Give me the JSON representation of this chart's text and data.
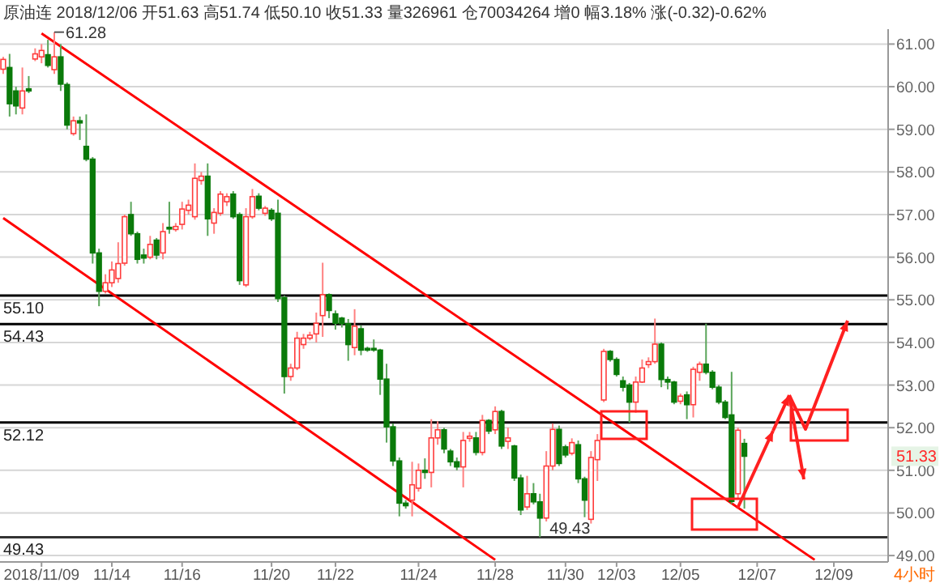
{
  "chart_data": {
    "type": "candlestick",
    "title": "原油连 2018/12/06 开51.63 高51.74 低50.10 收51.33 量326961 仓70034264 增0 幅3.18% 涨(-0.32)-0.62%",
    "categories": [
      null,
      null,
      null,
      null,
      null,
      null,
      "2018/11/09",
      null,
      null,
      null,
      null,
      null,
      null,
      null,
      null,
      null,
      null,
      "11/14",
      null,
      null,
      null,
      null,
      null,
      null,
      null,
      null,
      null,
      null,
      "11/16",
      null,
      null,
      null,
      null,
      null,
      null,
      null,
      null,
      null,
      null,
      null,
      null,
      null,
      "11/20",
      null,
      null,
      null,
      null,
      null,
      null,
      null,
      null,
      null,
      "11/22",
      null,
      null,
      null,
      null,
      null,
      null,
      null,
      null,
      null,
      null,
      null,
      null,
      "11/24",
      null,
      null,
      null,
      null,
      null,
      null,
      null,
      null,
      null,
      null,
      null,
      "11/28",
      null,
      null,
      null,
      null,
      null,
      null,
      null,
      null,
      null,
      null,
      "11/30",
      null,
      null,
      null,
      null,
      null,
      null,
      null,
      "12/03",
      null,
      null,
      null,
      null,
      null,
      null,
      null,
      null,
      null,
      "12/05",
      null,
      null,
      null,
      null,
      null,
      null,
      null,
      null,
      null,
      null,
      null,
      "12/07",
      null,
      null,
      null,
      null,
      null,
      null,
      null,
      null,
      null,
      null,
      null,
      "12/09",
      null,
      null,
      null,
      null,
      null,
      null,
      null,
      null
    ],
    "ohlc": [
      [
        60.41,
        60.7,
        60.3,
        60.64
      ],
      [
        60.45,
        60.77,
        59.3,
        59.6
      ],
      [
        59.9,
        60.0,
        59.35,
        59.55
      ],
      [
        59.5,
        60.45,
        59.35,
        59.9
      ],
      [
        59.95,
        60.25,
        59.85,
        59.9
      ],
      [
        60.65,
        60.9,
        60.6,
        60.77
      ],
      [
        60.7,
        61.0,
        60.55,
        60.85
      ],
      [
        60.75,
        61.1,
        60.45,
        60.5
      ],
      [
        60.4,
        61.28,
        60.3,
        60.7
      ],
      [
        60.7,
        61.0,
        59.9,
        60.06
      ],
      [
        60.05,
        60.1,
        59.0,
        59.1
      ],
      [
        58.9,
        59.3,
        58.85,
        59.2
      ],
      [
        59.2,
        59.3,
        58.75,
        59.15
      ],
      [
        58.6,
        59.35,
        58.25,
        58.3
      ],
      [
        58.3,
        58.35,
        55.85,
        56.1
      ],
      [
        56.1,
        56.2,
        54.85,
        55.2
      ],
      [
        55.2,
        55.6,
        55.15,
        55.4
      ],
      [
        55.4,
        55.9,
        55.3,
        55.7
      ],
      [
        55.5,
        56.35,
        55.4,
        55.85
      ],
      [
        55.86,
        57.0,
        55.8,
        56.95
      ],
      [
        57.0,
        57.3,
        56.5,
        56.55
      ],
      [
        56.55,
        56.6,
        55.85,
        55.95
      ],
      [
        56.05,
        56.2,
        55.85,
        55.98
      ],
      [
        56.0,
        56.5,
        55.95,
        56.3
      ],
      [
        56.4,
        56.45,
        55.95,
        56.05
      ],
      [
        56.1,
        56.8,
        55.95,
        56.6
      ],
      [
        56.7,
        57.3,
        56.55,
        56.67
      ],
      [
        56.65,
        56.8,
        56.6,
        56.72
      ],
      [
        56.77,
        57.3,
        56.65,
        57.13
      ],
      [
        57.1,
        57.35,
        57.0,
        57.22
      ],
      [
        56.95,
        58.2,
        56.88,
        57.85
      ],
      [
        57.8,
        58.0,
        57.7,
        57.9
      ],
      [
        57.9,
        58.2,
        56.5,
        56.9
      ],
      [
        56.8,
        57.15,
        56.55,
        57.05
      ],
      [
        57.03,
        57.55,
        56.97,
        57.48
      ],
      [
        57.3,
        57.5,
        57.2,
        57.42
      ],
      [
        57.48,
        57.55,
        56.9,
        56.95
      ],
      [
        57.0,
        57.05,
        55.35,
        55.45
      ],
      [
        55.35,
        57.15,
        55.3,
        56.95
      ],
      [
        56.95,
        57.6,
        56.9,
        57.42
      ],
      [
        57.43,
        57.5,
        57.1,
        57.15
      ],
      [
        57.03,
        57.2,
        56.97,
        57.15
      ],
      [
        57.1,
        57.15,
        56.85,
        56.9
      ],
      [
        57.03,
        57.35,
        54.95,
        55.03
      ],
      [
        55.05,
        55.1,
        52.8,
        53.2
      ],
      [
        53.2,
        53.5,
        53.1,
        53.4
      ],
      [
        53.4,
        54.25,
        53.35,
        54.1
      ],
      [
        53.95,
        54.2,
        53.85,
        54.1
      ],
      [
        54.1,
        54.25,
        54.05,
        54.17
      ],
      [
        54.2,
        54.7,
        54.0,
        54.45
      ],
      [
        54.63,
        55.87,
        54.13,
        55.12
      ],
      [
        55.12,
        55.15,
        54.57,
        54.75
      ],
      [
        54.67,
        54.75,
        54.3,
        54.45
      ],
      [
        54.57,
        54.6,
        54.35,
        54.44
      ],
      [
        54.44,
        54.55,
        53.57,
        53.95
      ],
      [
        53.88,
        54.78,
        53.7,
        54.38
      ],
      [
        54.32,
        54.4,
        53.7,
        53.82
      ],
      [
        53.86,
        53.9,
        53.78,
        53.82
      ],
      [
        53.86,
        54.07,
        53.78,
        53.83
      ],
      [
        53.82,
        53.85,
        52.77,
        53.14
      ],
      [
        53.14,
        53.5,
        51.65,
        52.02
      ],
      [
        52.02,
        52.1,
        51.1,
        51.22
      ],
      [
        51.22,
        51.3,
        49.92,
        50.23
      ],
      [
        50.23,
        50.3,
        50.1,
        50.17
      ],
      [
        50.3,
        51.2,
        49.92,
        50.66
      ],
      [
        50.58,
        51.16,
        50.5,
        51.0
      ],
      [
        51.0,
        51.28,
        50.8,
        50.95
      ],
      [
        50.95,
        52.2,
        50.6,
        51.76
      ],
      [
        51.76,
        52.15,
        51.6,
        51.95
      ],
      [
        51.95,
        52.0,
        51.4,
        51.5
      ],
      [
        51.45,
        51.5,
        51.1,
        51.2
      ],
      [
        51.2,
        51.3,
        51.0,
        51.08
      ],
      [
        51.08,
        51.9,
        50.6,
        51.7
      ],
      [
        51.75,
        51.9,
        51.67,
        51.8
      ],
      [
        51.76,
        51.9,
        51.35,
        51.42
      ],
      [
        51.42,
        52.3,
        51.35,
        52.17
      ],
      [
        52.17,
        52.2,
        51.85,
        51.92
      ],
      [
        51.95,
        52.5,
        51.85,
        52.38
      ],
      [
        52.38,
        52.42,
        51.5,
        51.57
      ],
      [
        51.68,
        52.0,
        51.5,
        51.76
      ],
      [
        51.57,
        51.6,
        50.75,
        50.82
      ],
      [
        50.82,
        50.9,
        49.95,
        50.07
      ],
      [
        50.14,
        50.87,
        50.07,
        50.45
      ],
      [
        50.45,
        50.7,
        50.2,
        50.26
      ],
      [
        50.26,
        50.45,
        49.43,
        49.88
      ],
      [
        49.88,
        51.45,
        49.8,
        51.1
      ],
      [
        51.1,
        52.1,
        51.0,
        51.96
      ],
      [
        51.96,
        52.05,
        51.1,
        51.16
      ],
      [
        51.55,
        51.6,
        51.3,
        51.36
      ],
      [
        51.4,
        51.75,
        51.35,
        51.65
      ],
      [
        51.6,
        51.7,
        50.7,
        50.8
      ],
      [
        50.8,
        50.85,
        49.9,
        50.3
      ],
      [
        49.85,
        51.45,
        49.75,
        51.3
      ],
      [
        51.25,
        51.85,
        50.75,
        51.7
      ],
      [
        52.65,
        53.85,
        52.6,
        53.79
      ],
      [
        53.79,
        53.82,
        53.55,
        53.6
      ],
      [
        53.6,
        53.65,
        53.2,
        53.25
      ],
      [
        53.1,
        53.2,
        52.85,
        52.95
      ],
      [
        53.0,
        53.05,
        52.12,
        52.6
      ],
      [
        52.6,
        53.2,
        52.35,
        53.07
      ],
      [
        53.07,
        53.6,
        53.05,
        53.4
      ],
      [
        53.48,
        53.65,
        53.4,
        53.55
      ],
      [
        53.55,
        54.56,
        53.5,
        53.96
      ],
      [
        53.96,
        54.0,
        52.95,
        53.13
      ],
      [
        53.13,
        53.2,
        52.9,
        53.07
      ],
      [
        53.07,
        53.1,
        52.55,
        52.6
      ],
      [
        52.62,
        52.8,
        52.55,
        52.74
      ],
      [
        52.77,
        52.85,
        52.2,
        52.54
      ],
      [
        52.54,
        53.43,
        52.24,
        53.37
      ],
      [
        53.3,
        53.55,
        53.1,
        53.49
      ],
      [
        53.49,
        54.44,
        53.25,
        53.3
      ],
      [
        53.3,
        53.35,
        52.9,
        52.95
      ],
      [
        52.95,
        53.0,
        52.55,
        52.6
      ],
      [
        52.6,
        52.65,
        52.2,
        52.24
      ],
      [
        52.3,
        53.31,
        50.21,
        50.27
      ],
      [
        50.45,
        52.0,
        50.33,
        51.94
      ],
      [
        51.63,
        51.74,
        50.1,
        51.33
      ],
      null,
      null,
      null,
      null,
      null,
      null,
      null,
      null,
      null,
      null,
      null,
      null,
      null,
      null,
      null,
      null,
      null,
      null,
      null,
      null,
      null,
      null
    ],
    "series": [
      {
        "type": "line",
        "color": "#ff0000",
        "values": [
          null,
          null,
          null,
          null,
          null,
          null,
          61.25,
          null,
          null,
          null,
          null,
          null,
          null,
          null,
          null,
          null,
          null,
          null,
          null,
          null,
          null,
          null,
          null,
          null,
          null,
          null,
          null,
          null,
          null,
          null,
          null,
          null,
          null,
          null,
          null,
          null,
          null,
          null,
          null,
          null,
          null,
          null,
          null,
          null,
          null,
          null,
          null,
          null,
          null,
          null,
          null,
          null,
          null,
          null,
          null,
          null,
          null,
          null,
          null,
          null,
          null,
          null,
          null,
          null,
          null,
          null,
          null,
          null,
          null,
          null,
          null,
          null,
          null,
          null,
          null,
          null,
          null,
          null,
          null,
          null,
          null,
          null,
          null,
          null,
          null,
          null,
          null,
          null,
          null,
          null,
          null,
          null,
          null,
          null,
          null,
          null,
          null,
          null,
          null,
          null,
          null,
          null,
          null,
          null,
          null,
          null,
          null,
          null,
          null,
          null,
          null,
          null,
          null,
          null,
          null,
          null,
          null,
          null,
          null,
          null,
          null,
          null,
          null,
          null,
          null,
          null,
          null,
          48.9,
          null,
          null,
          null,
          null,
          null,
          null,
          null,
          null,
          null,
          null,
          null
        ]
      },
      {
        "type": "line",
        "color": "#ff0000",
        "values": [
          56.92,
          null,
          null,
          null,
          null,
          null,
          null,
          null,
          null,
          null,
          null,
          null,
          null,
          null,
          null,
          null,
          null,
          null,
          null,
          null,
          null,
          null,
          null,
          null,
          null,
          null,
          null,
          null,
          null,
          null,
          null,
          null,
          null,
          null,
          null,
          null,
          null,
          null,
          null,
          null,
          null,
          null,
          null,
          null,
          null,
          null,
          null,
          null,
          null,
          null,
          null,
          null,
          null,
          null,
          null,
          null,
          null,
          null,
          null,
          null,
          null,
          null,
          null,
          null,
          null,
          null,
          null,
          null,
          null,
          null,
          null,
          null,
          null,
          null,
          null,
          null,
          null,
          48.9,
          null,
          null,
          null,
          null,
          null,
          null,
          null,
          null,
          null,
          null,
          null,
          null,
          null,
          null,
          null,
          null,
          null,
          null,
          null,
          null,
          null,
          null,
          null,
          null,
          null,
          null,
          null,
          null,
          null,
          null,
          null,
          null,
          null,
          null,
          null,
          null,
          null,
          null,
          null,
          null,
          null,
          null,
          null,
          null,
          null,
          null,
          null,
          null,
          null,
          null,
          null,
          null,
          null,
          null,
          null,
          null,
          null,
          null,
          null,
          null,
          null
        ]
      }
    ],
    "ylim": [
      48.85,
      61.35
    ],
    "yticks": [
      {
        "value": 49,
        "label": "49.00"
      },
      {
        "value": 50,
        "label": "50.00"
      },
      {
        "value": 51,
        "label": "51.00"
      },
      {
        "value": 52,
        "label": "52.00"
      },
      {
        "value": 53,
        "label": "53.00"
      },
      {
        "value": 54,
        "label": "54.00"
      },
      {
        "value": 55,
        "label": "55.00"
      },
      {
        "value": 56,
        "label": "56.00"
      },
      {
        "value": 57,
        "label": "57.00"
      },
      {
        "value": 58,
        "label": "58.00"
      },
      {
        "value": 59,
        "label": "59.00"
      },
      {
        "value": 60,
        "label": "60.00"
      },
      {
        "value": 61,
        "label": "61.00"
      }
    ],
    "grid": "y",
    "ref_lines": [
      {
        "axis": "y",
        "value": 55.1,
        "label": "55.10",
        "color": "#000000"
      },
      {
        "axis": "y",
        "value": 54.43,
        "label": "54.43",
        "color": "#000000"
      },
      {
        "axis": "y",
        "value": 52.12,
        "label": "52.12",
        "color": "#000000"
      },
      {
        "axis": "y",
        "value": 49.43,
        "label": "49.43",
        "color": "#333333"
      }
    ],
    "annotations": [
      "61.28",
      {
        "text": "49.43",
        "y": 49.43
      },
      {
        "text": "51.33",
        "y": 51.33
      },
      "4小时"
    ]
  }
}
